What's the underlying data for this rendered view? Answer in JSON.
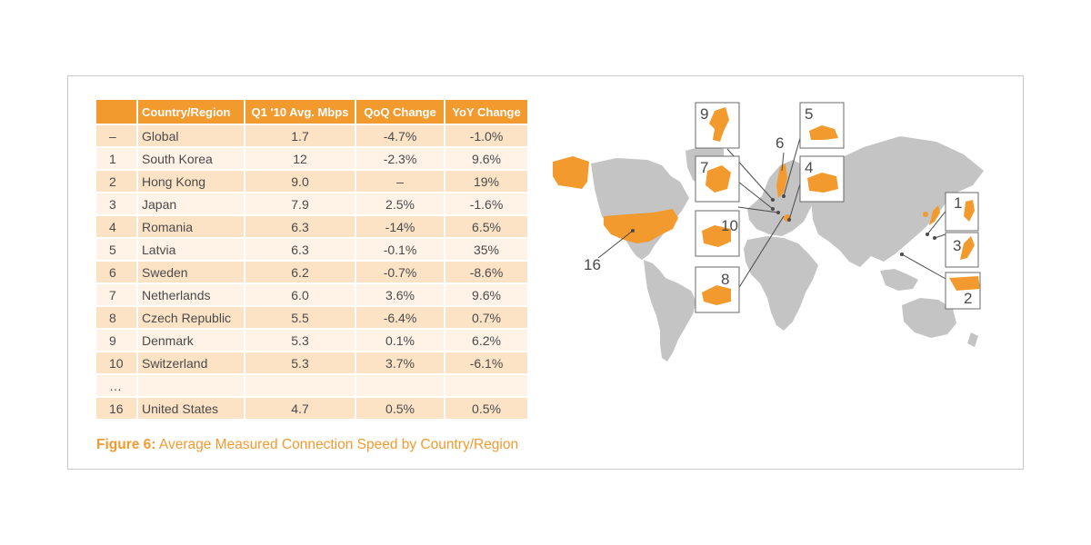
{
  "table": {
    "headers": [
      "",
      "Country/Region",
      "Q1 '10 Avg. Mbps",
      "QoQ Change",
      "YoY Change"
    ],
    "rows": [
      {
        "rank": "–",
        "name": "Global",
        "mbps": "1.7",
        "qoq": "-4.7%",
        "yoy": "-1.0%"
      },
      {
        "rank": "1",
        "name": "South Korea",
        "mbps": "12",
        "qoq": "-2.3%",
        "yoy": "9.6%"
      },
      {
        "rank": "2",
        "name": "Hong Kong",
        "mbps": "9.0",
        "qoq": "–",
        "yoy": "19%"
      },
      {
        "rank": "3",
        "name": "Japan",
        "mbps": "7.9",
        "qoq": "2.5%",
        "yoy": "-1.6%"
      },
      {
        "rank": "4",
        "name": "Romania",
        "mbps": "6.3",
        "qoq": "-14%",
        "yoy": "6.5%"
      },
      {
        "rank": "5",
        "name": "Latvia",
        "mbps": "6.3",
        "qoq": "-0.1%",
        "yoy": "35%"
      },
      {
        "rank": "6",
        "name": "Sweden",
        "mbps": "6.2",
        "qoq": "-0.7%",
        "yoy": "-8.6%"
      },
      {
        "rank": "7",
        "name": "Netherlands",
        "mbps": "6.0",
        "qoq": "3.6%",
        "yoy": "9.6%"
      },
      {
        "rank": "8",
        "name": "Czech Republic",
        "mbps": "5.5",
        "qoq": "-6.4%",
        "yoy": "0.7%"
      },
      {
        "rank": "9",
        "name": "Denmark",
        "mbps": "5.3",
        "qoq": "0.1%",
        "yoy": "6.2%"
      },
      {
        "rank": "10",
        "name": "Switzerland",
        "mbps": "5.3",
        "qoq": "3.7%",
        "yoy": "-6.1%"
      },
      {
        "rank": "…",
        "name": "",
        "mbps": "",
        "qoq": "",
        "yoy": ""
      },
      {
        "rank": "16",
        "name": "United States",
        "mbps": "4.7",
        "qoq": "0.5%",
        "yoy": "0.5%"
      }
    ]
  },
  "caption": {
    "label": "Figure 6:",
    "text": " Average Measured Connection Speed by Country/Region"
  },
  "map": {
    "callout_numbers": [
      "9",
      "5",
      "6",
      "7",
      "4",
      "10",
      "8",
      "1",
      "3",
      "2",
      "16"
    ]
  },
  "colors": {
    "accent": "#f39a2f",
    "row_dark": "#fce3c6",
    "row_light": "#fef3e6",
    "land": "#c4c4c4",
    "highlight": "#f39a2f"
  }
}
